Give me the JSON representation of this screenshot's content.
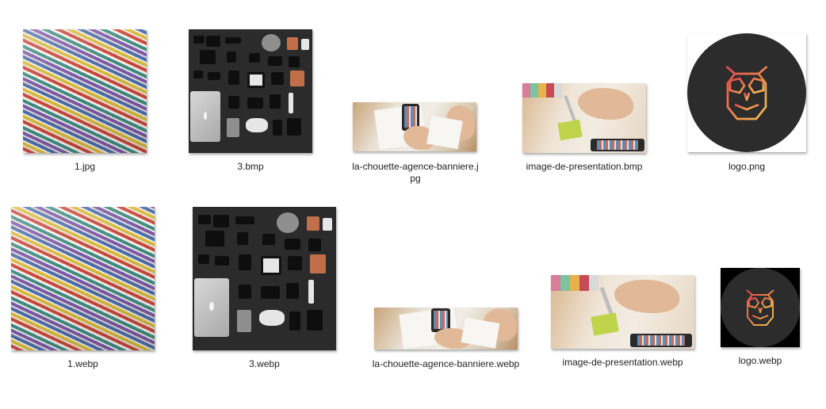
{
  "files": [
    {
      "name": "1.jpg",
      "kind": "magazines"
    },
    {
      "name": "3.bmp",
      "kind": "gadgets"
    },
    {
      "name": "la-chouette-agence-banniere.jpg",
      "kind": "banner"
    },
    {
      "name": "image-de-presentation.bmp",
      "kind": "presentation"
    },
    {
      "name": "logo.png",
      "kind": "logo"
    },
    {
      "name": "1.webp",
      "kind": "magazines"
    },
    {
      "name": "3.webp",
      "kind": "gadgets"
    },
    {
      "name": "la-chouette-agence-banniere.webp",
      "kind": "banner"
    },
    {
      "name": "image-de-presentation.webp",
      "kind": "presentation"
    },
    {
      "name": "logo.webp",
      "kind": "logo"
    }
  ],
  "colors": {
    "logo_gradient_start": "#e8474c",
    "logo_gradient_end": "#f2c14e",
    "logo_circle": "#2c2c2c"
  }
}
